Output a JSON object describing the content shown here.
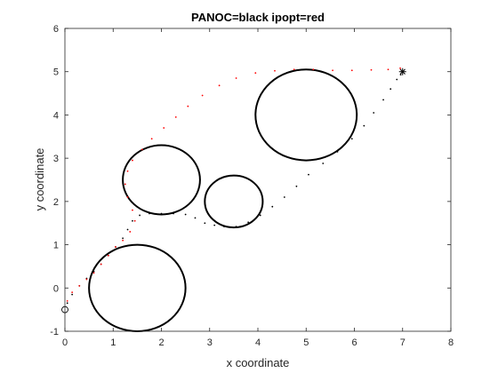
{
  "chart_data": {
    "type": "scatter",
    "title": "PANOC=black ipopt=red",
    "xlabel": "x coordinate",
    "ylabel": "y coordinate",
    "xlim": [
      0,
      8
    ],
    "ylim": [
      -1,
      6
    ],
    "xticks": [
      0,
      1,
      2,
      3,
      4,
      5,
      6,
      7,
      8
    ],
    "yticks": [
      -1,
      0,
      1,
      2,
      3,
      4,
      5,
      6
    ],
    "grid": false,
    "box": true,
    "obstacles": [
      {
        "cx": 1.5,
        "cy": 0.0,
        "r": 1.0
      },
      {
        "cx": 2.0,
        "cy": 2.5,
        "r": 0.8
      },
      {
        "cx": 3.5,
        "cy": 2.0,
        "r": 0.6
      },
      {
        "cx": 5.0,
        "cy": 4.0,
        "r": 1.05
      }
    ],
    "start": {
      "x": 0,
      "y": -0.5,
      "marker": "circle"
    },
    "goal": {
      "x": 7,
      "y": 5,
      "marker": "asterisk"
    },
    "series": [
      {
        "name": "PANOC",
        "color": "#000000",
        "marker": "dot",
        "points": [
          [
            0.05,
            -0.35
          ],
          [
            0.15,
            -0.15
          ],
          [
            0.3,
            0.05
          ],
          [
            0.45,
            0.22
          ],
          [
            0.6,
            0.38
          ],
          [
            0.75,
            0.55
          ],
          [
            0.9,
            0.75
          ],
          [
            1.05,
            0.95
          ],
          [
            1.2,
            1.15
          ],
          [
            1.3,
            1.35
          ],
          [
            1.4,
            1.55
          ],
          [
            1.55,
            1.68
          ],
          [
            1.75,
            1.72
          ],
          [
            2.0,
            1.72
          ],
          [
            2.25,
            1.72
          ],
          [
            2.5,
            1.7
          ],
          [
            2.7,
            1.62
          ],
          [
            2.9,
            1.5
          ],
          [
            3.1,
            1.45
          ],
          [
            3.3,
            1.42
          ],
          [
            3.55,
            1.42
          ],
          [
            3.8,
            1.52
          ],
          [
            4.05,
            1.68
          ],
          [
            4.3,
            1.88
          ],
          [
            4.55,
            2.1
          ],
          [
            4.8,
            2.35
          ],
          [
            5.05,
            2.62
          ],
          [
            5.35,
            2.88
          ],
          [
            5.65,
            3.15
          ],
          [
            5.95,
            3.45
          ],
          [
            6.2,
            3.75
          ],
          [
            6.4,
            4.05
          ],
          [
            6.6,
            4.35
          ],
          [
            6.75,
            4.6
          ],
          [
            6.88,
            4.82
          ],
          [
            6.96,
            4.93
          ]
        ]
      },
      {
        "name": "ipopt",
        "color": "#ff0000",
        "marker": "dot",
        "points": [
          [
            0.05,
            -0.3
          ],
          [
            0.15,
            -0.1
          ],
          [
            0.3,
            0.05
          ],
          [
            0.45,
            0.2
          ],
          [
            0.6,
            0.35
          ],
          [
            0.75,
            0.55
          ],
          [
            0.9,
            0.75
          ],
          [
            1.05,
            0.95
          ],
          [
            1.2,
            1.1
          ],
          [
            1.35,
            1.3
          ],
          [
            1.45,
            1.55
          ],
          [
            1.4,
            1.8
          ],
          [
            1.3,
            2.1
          ],
          [
            1.25,
            2.4
          ],
          [
            1.3,
            2.7
          ],
          [
            1.4,
            2.95
          ],
          [
            1.6,
            3.2
          ],
          [
            1.8,
            3.45
          ],
          [
            2.05,
            3.7
          ],
          [
            2.3,
            3.95
          ],
          [
            2.55,
            4.2
          ],
          [
            2.85,
            4.45
          ],
          [
            3.2,
            4.68
          ],
          [
            3.55,
            4.85
          ],
          [
            3.95,
            4.97
          ],
          [
            4.35,
            5.02
          ],
          [
            4.75,
            5.05
          ],
          [
            5.15,
            5.05
          ],
          [
            5.55,
            5.03
          ],
          [
            5.95,
            5.03
          ],
          [
            6.35,
            5.04
          ],
          [
            6.7,
            5.05
          ],
          [
            6.95,
            5.08
          ]
        ]
      }
    ]
  }
}
